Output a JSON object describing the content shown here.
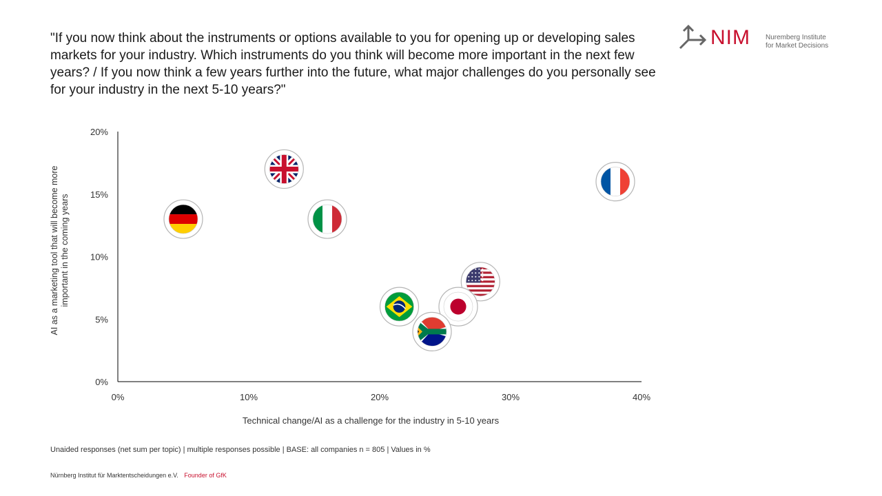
{
  "header": {
    "question": "\"If you now think about the instruments or options available to you for opening up or developing sales markets for your industry. Which instruments do you think will become more important in the next few years? / If you now think a few years further into the future, what major challenges do you personally see for your industry in the next 5-10 years?\""
  },
  "logo": {
    "brand": "NIM",
    "line1": "Nuremberg Institute",
    "line2": "for Market Decisions"
  },
  "chart_data": {
    "type": "scatter",
    "xlabel": "Technical change/AI as a challenge for the industry in 5-10 years",
    "ylabel": "AI as a marketing tool that will become more important in the coming years",
    "xlim": [
      0,
      40
    ],
    "ylim": [
      0,
      20
    ],
    "xticks": [
      0,
      10,
      20,
      30,
      40
    ],
    "yticks": [
      0,
      5,
      10,
      15,
      20
    ],
    "xtick_labels": [
      "0%",
      "10%",
      "20%",
      "30%",
      "40%"
    ],
    "ytick_labels": [
      "0%",
      "5%",
      "10%",
      "15%",
      "20%"
    ],
    "grid": false,
    "points": [
      {
        "flag": "germany",
        "x": 5,
        "y": 13
      },
      {
        "flag": "united-kingdom",
        "x": 12.7,
        "y": 17
      },
      {
        "flag": "italy",
        "x": 16,
        "y": 13
      },
      {
        "flag": "france",
        "x": 38,
        "y": 16
      },
      {
        "flag": "usa",
        "x": 27.7,
        "y": 8
      },
      {
        "flag": "brazil",
        "x": 21.5,
        "y": 6
      },
      {
        "flag": "japan",
        "x": 26,
        "y": 6
      },
      {
        "flag": "south-africa",
        "x": 24,
        "y": 4
      }
    ]
  },
  "footnote": "Unaided responses (net sum per topic) | multiple responses possible | BASE: all companies n = 805 | Values in %",
  "footer": {
    "org": "Nürnberg Institut für Marktentscheidungen e.V.",
    "founder": "Founder of GfK"
  },
  "colors": {
    "brand_red": "#c8102e",
    "axis": "#000000",
    "marker_border": "#b5b5b5"
  }
}
